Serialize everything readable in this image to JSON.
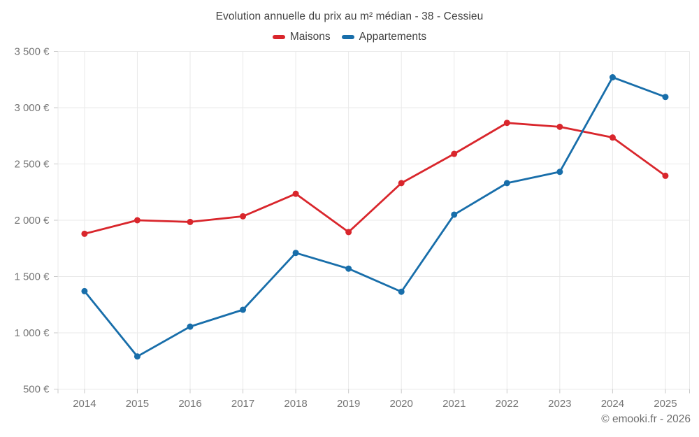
{
  "chart_data": {
    "type": "line",
    "title": "Evolution annuelle du prix au m² médian - 38 - Cessieu",
    "categories": [
      "2014",
      "2015",
      "2016",
      "2017",
      "2018",
      "2019",
      "2020",
      "2021",
      "2022",
      "2023",
      "2024",
      "2025"
    ],
    "series": [
      {
        "name": "Maisons",
        "color": "#d9262c",
        "values": [
          1880,
          2000,
          1985,
          2035,
          2235,
          1895,
          2330,
          2590,
          2865,
          2830,
          2735,
          2395
        ]
      },
      {
        "name": "Appartements",
        "color": "#186eaa",
        "values": [
          1370,
          790,
          1055,
          1205,
          1710,
          1570,
          1365,
          2050,
          2330,
          2430,
          3270,
          3095
        ]
      }
    ],
    "xlabel": "",
    "ylabel": "",
    "ylim": [
      500,
      3500
    ],
    "y_ticks": [
      {
        "value": 500,
        "label": "500 €"
      },
      {
        "value": 1000,
        "label": "1 000 €"
      },
      {
        "value": 1500,
        "label": "1 500 €"
      },
      {
        "value": 2000,
        "label": "2 000 €"
      },
      {
        "value": 2500,
        "label": "2 500 €"
      },
      {
        "value": 3000,
        "label": "3 000 €"
      },
      {
        "value": 3500,
        "label": "3 500 €"
      }
    ],
    "grid": true,
    "legend_position": "top",
    "attribution": "© emooki.fr - 2026",
    "colors": {
      "title_text": "#424242",
      "axis_text": "#757575",
      "gridline": "#e9e9e9",
      "tick": "#c9c9c9",
      "attribution_text": "#6e6e6e"
    }
  }
}
